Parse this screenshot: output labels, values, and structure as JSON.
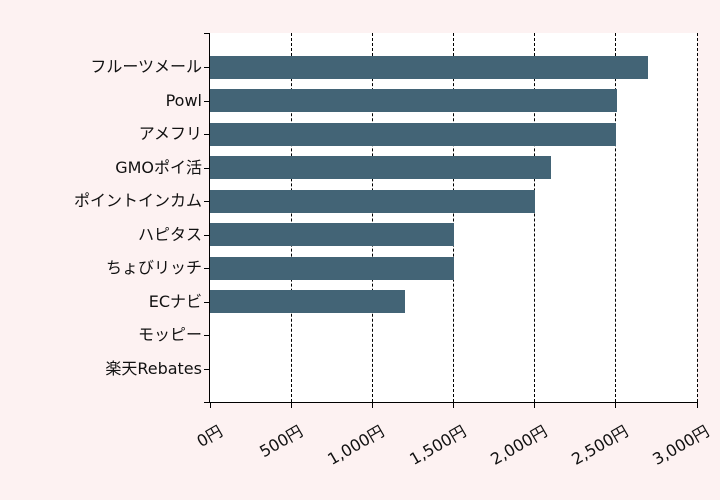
{
  "chart_data": {
    "type": "bar",
    "orientation": "horizontal",
    "title": "",
    "xlabel": "",
    "ylabel": "",
    "categories": [
      "フルーツメール",
      "Powl",
      "アメフリ",
      "GMOポイ活",
      "ポイントインカム",
      "ハピタス",
      "ちょびリッチ",
      "ECナビ",
      "モッピー",
      "楽天Rebates"
    ],
    "values": [
      2700,
      2510,
      2500,
      2100,
      2000,
      1500,
      1500,
      1200,
      0,
      0
    ],
    "xlim": [
      0,
      3000
    ],
    "xticks": [
      0,
      500,
      1000,
      1500,
      2000,
      2500,
      3000
    ],
    "xtick_labels": [
      "0円",
      "500円",
      "1,000円",
      "1,500円",
      "2,000円",
      "2,500円",
      "3,000円"
    ],
    "grid": "vertical dashed",
    "legend": "none",
    "bar_color": "#436476"
  },
  "colors": {
    "background": "#fdf2f2",
    "plot_background": "#ffffff",
    "bar": "#436476"
  }
}
